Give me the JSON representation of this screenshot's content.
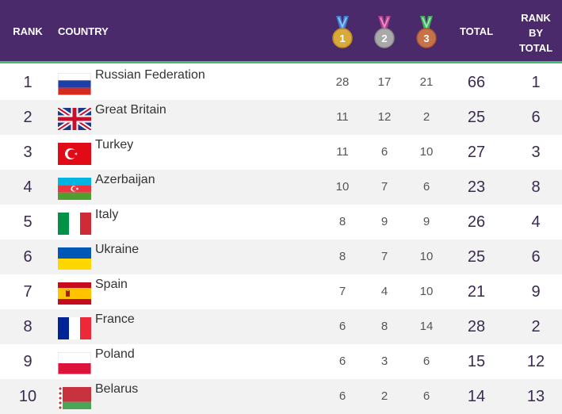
{
  "header": {
    "rank": "RANK",
    "country": "COUNTRY",
    "gold_digit": "1",
    "silver_digit": "2",
    "bronze_digit": "3",
    "total": "TOTAL",
    "rank_by_total_line1": "RANK",
    "rank_by_total_line2": "BY",
    "rank_by_total_line3": "TOTAL"
  },
  "colors": {
    "header_bg": "#4a2a6b",
    "header_accent": "#3fbf6f",
    "gold": "#d9a93a",
    "silver": "#a9a9a9",
    "bronze": "#c8724a"
  },
  "rows": [
    {
      "rank": "1",
      "country": "Russian Federation",
      "flag": "russia-flag-icon",
      "gold": "28",
      "silver": "17",
      "bronze": "21",
      "total": "66",
      "rank_by_total": "1"
    },
    {
      "rank": "2",
      "country": "Great Britain",
      "flag": "uk-flag-icon",
      "gold": "11",
      "silver": "12",
      "bronze": "2",
      "total": "25",
      "rank_by_total": "6"
    },
    {
      "rank": "3",
      "country": "Turkey",
      "flag": "turkey-flag-icon",
      "gold": "11",
      "silver": "6",
      "bronze": "10",
      "total": "27",
      "rank_by_total": "3"
    },
    {
      "rank": "4",
      "country": "Azerbaijan",
      "flag": "azerbaijan-flag-icon",
      "gold": "10",
      "silver": "7",
      "bronze": "6",
      "total": "23",
      "rank_by_total": "8"
    },
    {
      "rank": "5",
      "country": "Italy",
      "flag": "italy-flag-icon",
      "gold": "8",
      "silver": "9",
      "bronze": "9",
      "total": "26",
      "rank_by_total": "4"
    },
    {
      "rank": "6",
      "country": "Ukraine",
      "flag": "ukraine-flag-icon",
      "gold": "8",
      "silver": "7",
      "bronze": "10",
      "total": "25",
      "rank_by_total": "6"
    },
    {
      "rank": "7",
      "country": "Spain",
      "flag": "spain-flag-icon",
      "gold": "7",
      "silver": "4",
      "bronze": "10",
      "total": "21",
      "rank_by_total": "9"
    },
    {
      "rank": "8",
      "country": "France",
      "flag": "france-flag-icon",
      "gold": "6",
      "silver": "8",
      "bronze": "14",
      "total": "28",
      "rank_by_total": "2"
    },
    {
      "rank": "9",
      "country": "Poland",
      "flag": "poland-flag-icon",
      "gold": "6",
      "silver": "3",
      "bronze": "6",
      "total": "15",
      "rank_by_total": "12"
    },
    {
      "rank": "10",
      "country": "Belarus",
      "flag": "belarus-flag-icon",
      "gold": "6",
      "silver": "2",
      "bronze": "6",
      "total": "14",
      "rank_by_total": "13"
    }
  ]
}
